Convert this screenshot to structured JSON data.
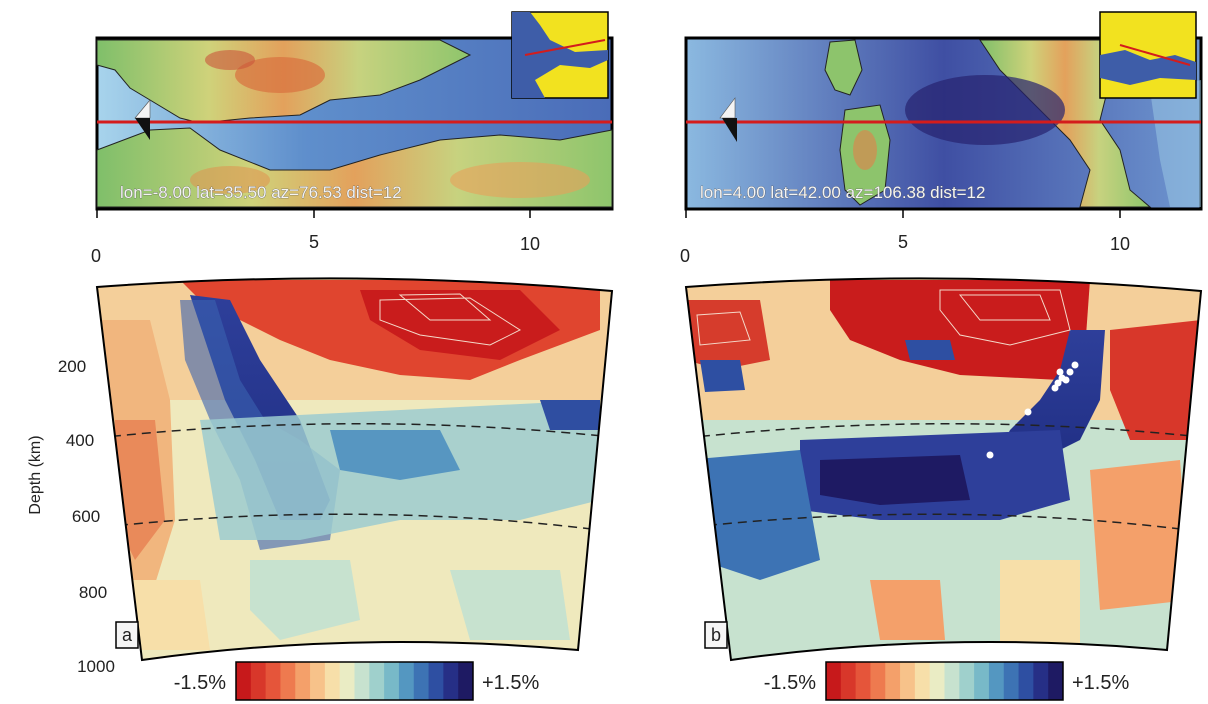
{
  "panels": [
    {
      "letter": "a",
      "map_label": "lon=-8.00 lat=35.50 az=76.53 dist=12",
      "x_ticks": [
        "0",
        "5",
        "10"
      ],
      "x_tick_values": [
        0,
        5,
        10
      ],
      "depth_ticks": [
        "200",
        "400",
        "600",
        "800",
        "1000"
      ],
      "colorbar_min": "-1.5%",
      "colorbar_max": "+1.5%"
    },
    {
      "letter": "b",
      "map_label": "lon=4.00 lat=42.00 az=106.38 dist=12",
      "x_ticks": [
        "0",
        "5",
        "10"
      ],
      "x_tick_values": [
        0,
        5,
        10
      ],
      "depth_ticks": [],
      "colorbar_min": "-1.5%",
      "colorbar_max": "+1.5%"
    }
  ],
  "depth_axis_title": "Depth (km)",
  "colorbar_colors": [
    "#c7191b",
    "#d8372a",
    "#e5553a",
    "#ee7a4f",
    "#f4a06a",
    "#f7c28a",
    "#f7dfa9",
    "#eaecc4",
    "#c7e2cf",
    "#9fd0cc",
    "#78b9c8",
    "#5497c1",
    "#3d73b4",
    "#2e4fa2",
    "#262f86",
    "#1e1a63"
  ]
}
